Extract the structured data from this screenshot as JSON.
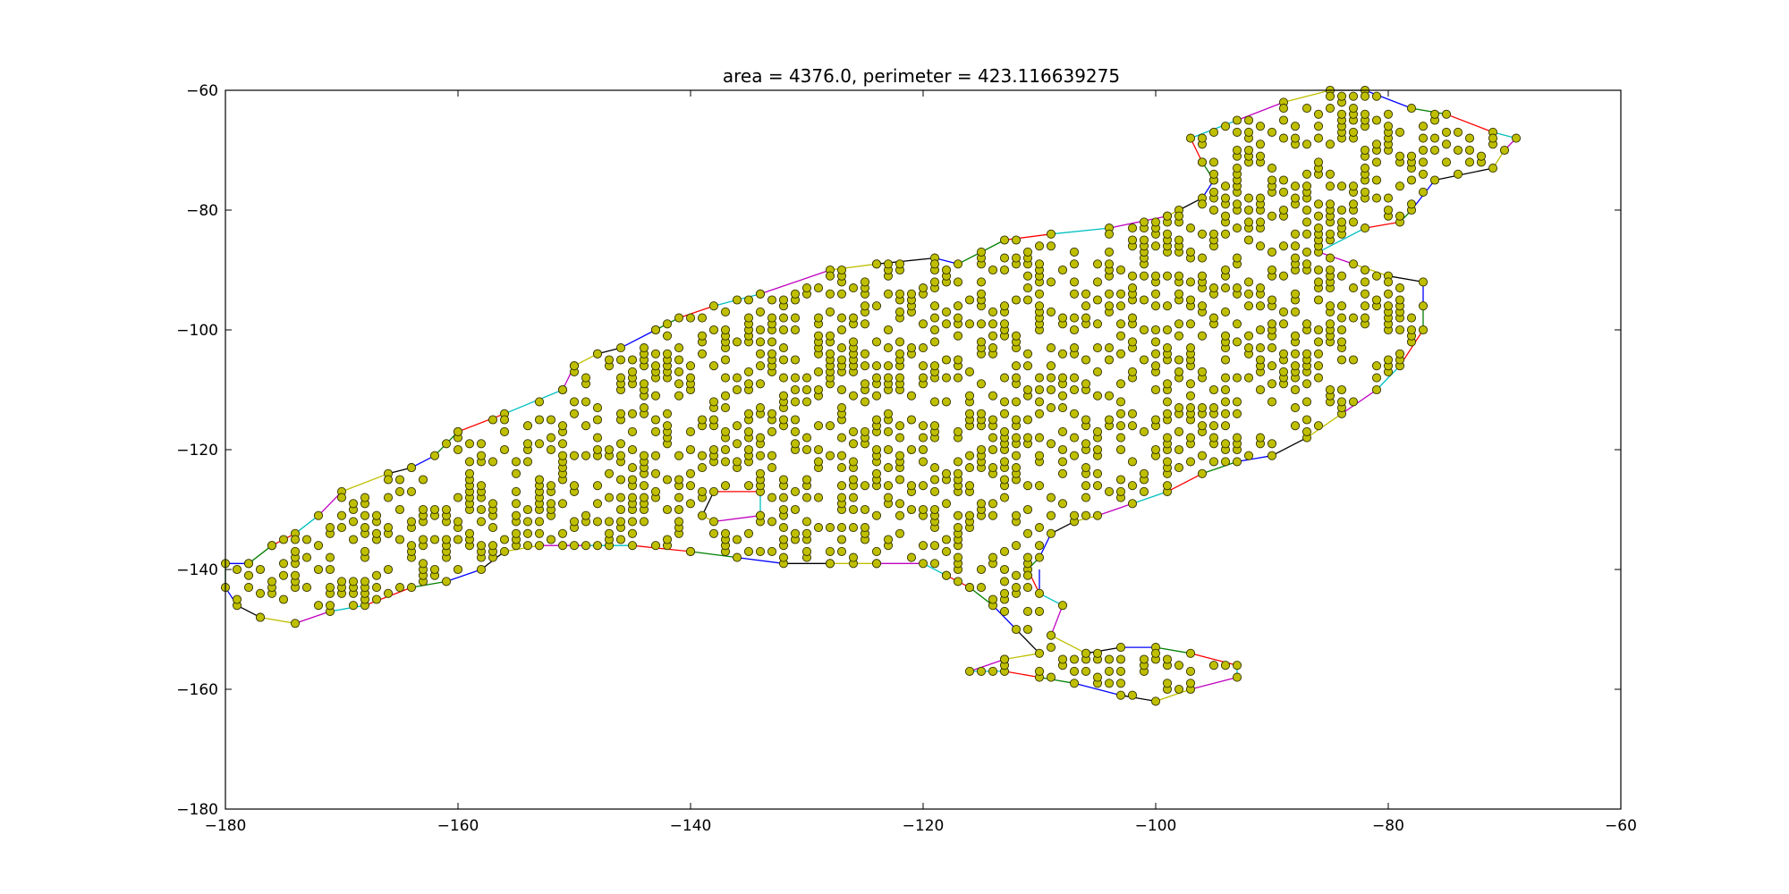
{
  "chart_data": {
    "type": "scatter",
    "title": "area = 4376.0, perimeter = 423.116639275",
    "xlabel": "",
    "ylabel": "",
    "xlim": [
      -180,
      -60
    ],
    "ylim": [
      -180,
      -60
    ],
    "xticks": [
      -180,
      -160,
      -140,
      -120,
      -100,
      -80,
      -60
    ],
    "yticks": [
      -180,
      -160,
      -140,
      -120,
      -100,
      -80,
      -60
    ],
    "xtick_labels": [
      "−180",
      "−160",
      "−140",
      "−120",
      "−100",
      "−80",
      "−60"
    ],
    "ytick_labels": [
      "−180",
      "−160",
      "−140",
      "−120",
      "−100",
      "−80",
      "−60"
    ],
    "grid": false,
    "marker_face_color": "#bfbf00",
    "marker_edge_color": "#333300",
    "edge_colors": [
      "#0000ff",
      "#008000",
      "#ff0000",
      "#00bfbf",
      "#bf00bf",
      "#bfbf00",
      "#000000"
    ],
    "boundary": [
      [
        -180,
        -139
      ],
      [
        -178,
        -139
      ],
      [
        -176,
        -136
      ],
      [
        -174,
        -134
      ],
      [
        -172,
        -131
      ],
      [
        -170,
        -127
      ],
      [
        -166,
        -124
      ],
      [
        -164,
        -123
      ],
      [
        -162,
        -121
      ],
      [
        -160,
        -117
      ],
      [
        -156,
        -114
      ],
      [
        -151,
        -110
      ],
      [
        -150,
        -106
      ],
      [
        -148,
        -104
      ],
      [
        -146,
        -103
      ],
      [
        -143,
        -100
      ],
      [
        -141,
        -98
      ],
      [
        -138,
        -96
      ],
      [
        -134,
        -94
      ],
      [
        -128,
        -90
      ],
      [
        -124,
        -89
      ],
      [
        -119,
        -88
      ],
      [
        -117,
        -89
      ],
      [
        -113,
        -85
      ],
      [
        -109,
        -84
      ],
      [
        -104,
        -83
      ],
      [
        -99,
        -81
      ],
      [
        -98,
        -80
      ],
      [
        -96,
        -78
      ],
      [
        -95,
        -75
      ],
      [
        -96,
        -72
      ],
      [
        -97,
        -68
      ],
      [
        -93,
        -65
      ],
      [
        -89,
        -62
      ],
      [
        -85,
        -60
      ],
      [
        -82,
        -60
      ],
      [
        -78,
        -63
      ],
      [
        -75,
        -64
      ],
      [
        -71,
        -67
      ],
      [
        -69,
        -68
      ],
      [
        -70,
        -70
      ],
      [
        -71,
        -73
      ],
      [
        -76,
        -75
      ],
      [
        -78,
        -80
      ],
      [
        -79,
        -82
      ],
      [
        -82,
        -83
      ],
      [
        -86,
        -87
      ],
      [
        -83,
        -89
      ],
      [
        -80,
        -91
      ],
      [
        -77,
        -92
      ],
      [
        -77,
        -96
      ],
      [
        -77,
        -100
      ],
      [
        -79,
        -106
      ],
      [
        -81,
        -110
      ],
      [
        -84,
        -114
      ],
      [
        -87,
        -118
      ],
      [
        -90,
        -121
      ],
      [
        -93,
        -122
      ],
      [
        -96,
        -124
      ],
      [
        -99,
        -127
      ],
      [
        -102,
        -129
      ],
      [
        -105,
        -131
      ],
      [
        -107,
        -132
      ],
      [
        -109,
        -134
      ],
      [
        -110,
        -138
      ],
      [
        -111,
        -140
      ],
      [
        -110,
        -144
      ],
      [
        -108,
        -146
      ],
      [
        -109,
        -151
      ],
      [
        -106,
        -154
      ],
      [
        -103,
        -153
      ],
      [
        -100,
        -153
      ],
      [
        -97,
        -154
      ],
      [
        -93,
        -156
      ],
      [
        -93,
        -158
      ],
      [
        -97,
        -160
      ],
      [
        -100,
        -162
      ],
      [
        -103,
        -161
      ],
      [
        -107,
        -159
      ],
      [
        -110,
        -158
      ],
      [
        -113,
        -157
      ],
      [
        -116,
        -157
      ],
      [
        -113,
        -155
      ],
      [
        -110,
        -154
      ],
      [
        -112,
        -150
      ],
      [
        -114,
        -146
      ],
      [
        -116,
        -143
      ],
      [
        -118,
        -141
      ],
      [
        -120,
        -139
      ],
      [
        -124,
        -139
      ],
      [
        -128,
        -139
      ],
      [
        -132,
        -139
      ],
      [
        -136,
        -138
      ],
      [
        -140,
        -137
      ],
      [
        -145,
        -136
      ],
      [
        -149,
        -136
      ],
      [
        -153,
        -136
      ],
      [
        -156,
        -137
      ],
      [
        -158,
        -140
      ],
      [
        -161,
        -142
      ],
      [
        -164,
        -143
      ],
      [
        -168,
        -146
      ],
      [
        -171,
        -147
      ],
      [
        -174,
        -149
      ],
      [
        -177,
        -148
      ],
      [
        -179,
        -146
      ],
      [
        -180,
        -143
      ]
    ],
    "hole": [
      [
        -138,
        -127
      ],
      [
        -134,
        -127
      ],
      [
        -134,
        -131
      ],
      [
        -138,
        -132
      ],
      [
        -139,
        -131
      ]
    ],
    "pinch_segment": [
      [
        -110,
        -140
      ],
      [
        -110,
        -144
      ]
    ]
  }
}
